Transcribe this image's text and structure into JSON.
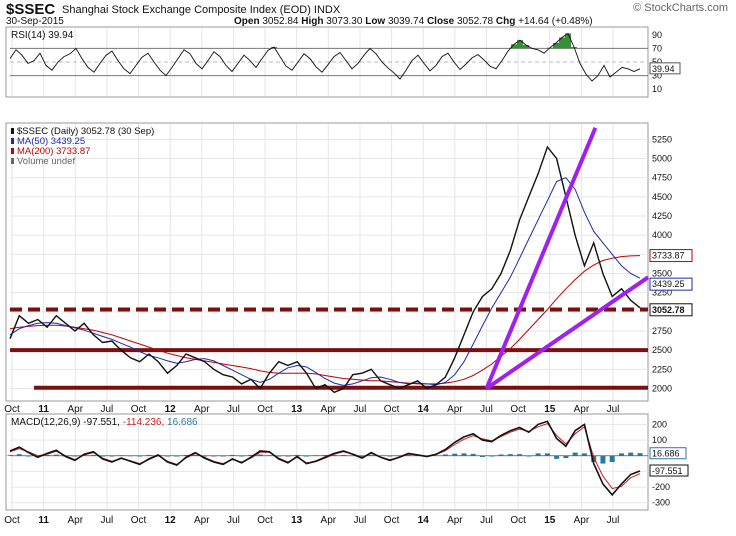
{
  "header": {
    "symbol": "$SSEC",
    "full_name": "Shanghai Stock Exchange Composite Index (EOD)",
    "exchange": "INDX",
    "date": "30-Sep-2015",
    "copyright": "© StockCharts.com",
    "ohlc": {
      "open_label": "Open",
      "open": "3052.84",
      "high_label": "High",
      "high": "3073.30",
      "low_label": "Low",
      "low": "3039.74",
      "close_label": "Close",
      "close": "3052.78",
      "chg_label": "Chg",
      "chg": "+14.64 (+0.48%)"
    }
  },
  "colors": {
    "price_line": "#111111",
    "ma50": "#1c2aa8",
    "ma200": "#c00000",
    "support_line": "#7a1010",
    "trend_line": "#a020f0",
    "rsi_overbought_fill": "#3a8f3a",
    "macd_histogram": "#2a7aa0",
    "macd_signal": "#d02020"
  },
  "chart_data": [
    {
      "type": "line",
      "panel": "rsi",
      "title": "RSI(14) 39.94",
      "ylim": [
        0,
        100
      ],
      "y_ticks": [
        10,
        30,
        50,
        70,
        90
      ],
      "reference_lines": [
        30,
        50,
        70
      ],
      "last_value_label": "39.94",
      "series": [
        {
          "values": [
            55,
            68,
            60,
            48,
            52,
            63,
            45,
            38,
            50,
            58,
            62,
            70,
            55,
            42,
            35,
            48,
            60,
            66,
            52,
            40,
            33,
            45,
            57,
            63,
            50,
            38,
            30,
            42,
            55,
            68,
            62,
            48,
            40,
            52,
            65,
            58,
            45,
            36,
            48,
            60,
            52,
            42,
            55,
            67,
            72,
            58,
            44,
            38,
            50,
            62,
            55,
            43,
            35,
            46,
            58,
            64,
            52,
            40,
            48,
            60,
            70,
            62,
            50,
            41,
            34,
            25,
            38,
            52,
            60,
            48,
            37,
            45,
            58,
            63,
            50,
            39,
            47,
            56,
            61,
            53,
            44,
            40,
            52,
            66,
            76,
            82,
            75,
            70,
            68,
            63,
            71,
            78,
            86,
            92,
            72,
            48,
            32,
            22,
            30,
            45,
            28,
            35,
            42,
            40,
            36,
            39.94
          ]
        }
      ]
    },
    {
      "type": "line",
      "panel": "price",
      "title": "$SSEC (Daily) 3052.78 (30 Sep)",
      "x_ticks": [
        "Oct",
        "11",
        "Apr",
        "Jul",
        "Oct",
        "12",
        "Apr",
        "Jul",
        "Oct",
        "13",
        "Apr",
        "Jul",
        "Oct",
        "14",
        "Apr",
        "Jul",
        "Oct",
        "15",
        "Apr",
        "Jul"
      ],
      "ylim": [
        1850,
        5450
      ],
      "y_ticks": [
        2000,
        2250,
        2500,
        2750,
        3000,
        3250,
        3500,
        3750,
        4000,
        4250,
        4500,
        4750,
        5000,
        5250
      ],
      "legend_placement": "top-left",
      "legend": [
        {
          "label": "$SSEC (Daily) 3052.78 (30 Sep)"
        },
        {
          "label": "MA(50) 3439.25"
        },
        {
          "label": "MA(200) 3733.87"
        },
        {
          "label": "Volume undef"
        }
      ],
      "last_value_labels": {
        "ma200": "3733.87",
        "ma50": "3439.25",
        "price": "3052.78"
      },
      "series": [
        {
          "name": "$SSEC",
          "values": [
            2650,
            2950,
            2850,
            2900,
            2800,
            2950,
            2850,
            2750,
            2850,
            2700,
            2600,
            2620,
            2500,
            2400,
            2350,
            2450,
            2350,
            2200,
            2300,
            2450,
            2400,
            2350,
            2250,
            2180,
            2150,
            2060,
            2120,
            2000,
            2200,
            2350,
            2300,
            2350,
            2200,
            2000,
            2050,
            1950,
            2000,
            2180,
            2200,
            2250,
            2100,
            2050,
            2000,
            2050,
            2100,
            2000,
            2050,
            2150,
            2400,
            2700,
            3000,
            3200,
            3300,
            3500,
            3800,
            4200,
            4500,
            4800,
            5150,
            5000,
            4500,
            4000,
            3600,
            3900,
            3500,
            3200,
            3300,
            3150,
            3052.78
          ]
        },
        {
          "name": "MA(50)",
          "values": [
            2700,
            2780,
            2820,
            2850,
            2860,
            2850,
            2820,
            2790,
            2760,
            2720,
            2680,
            2640,
            2590,
            2540,
            2480,
            2430,
            2400,
            2360,
            2330,
            2350,
            2380,
            2390,
            2360,
            2300,
            2240,
            2180,
            2120,
            2080,
            2120,
            2200,
            2270,
            2300,
            2280,
            2210,
            2130,
            2070,
            2040,
            2060,
            2100,
            2140,
            2150,
            2120,
            2080,
            2060,
            2070,
            2060,
            2050,
            2080,
            2180,
            2350,
            2580,
            2820,
            3050,
            3250,
            3450,
            3700,
            3950,
            4200,
            4450,
            4700,
            4750,
            4600,
            4300,
            4050,
            3900,
            3750,
            3600,
            3500,
            3439.25
          ]
        },
        {
          "name": "MA(200)",
          "values": [
            2780,
            2800,
            2810,
            2820,
            2825,
            2825,
            2815,
            2800,
            2780,
            2760,
            2730,
            2700,
            2660,
            2620,
            2580,
            2540,
            2500,
            2460,
            2430,
            2400,
            2380,
            2360,
            2340,
            2320,
            2300,
            2280,
            2260,
            2230,
            2210,
            2200,
            2200,
            2200,
            2200,
            2190,
            2170,
            2150,
            2130,
            2120,
            2110,
            2100,
            2100,
            2090,
            2080,
            2070,
            2060,
            2060,
            2060,
            2070,
            2090,
            2120,
            2170,
            2240,
            2320,
            2420,
            2520,
            2640,
            2770,
            2900,
            3030,
            3170,
            3300,
            3420,
            3530,
            3610,
            3670,
            3700,
            3720,
            3730,
            3733.87
          ]
        }
      ],
      "support_levels": [
        2500,
        2010
      ],
      "resistance_dashed": 3030,
      "annotations": [
        {
          "kind": "trend_line",
          "from_x": "Jul 14",
          "from_y": 2000,
          "to_x": "May 15",
          "to_y": 5400
        },
        {
          "kind": "trend_line",
          "from_x": "Jul 14",
          "from_y": 2000,
          "to_x": "Oct 15",
          "to_y": 3450
        }
      ]
    },
    {
      "type": "line",
      "panel": "macd",
      "title": "MACD(12,26,9) -97.551, -114.236, 16.686",
      "legend": [
        {
          "label": "MACD(12,26,9)"
        },
        {
          "label": "-97.551"
        },
        {
          "label": "-114.236"
        },
        {
          "label": "16.686"
        }
      ],
      "ylim": [
        -340,
        260
      ],
      "y_ticks": [
        -300,
        -200,
        -100,
        0,
        100,
        200
      ],
      "x_ticks": [
        "Oct",
        "11",
        "Apr",
        "Jul",
        "Oct",
        "12",
        "Apr",
        "Jul",
        "Oct",
        "13",
        "Apr",
        "Jul",
        "Oct",
        "14",
        "Apr",
        "Jul",
        "Oct",
        "15",
        "Apr",
        "Jul"
      ],
      "last_value_labels": {
        "histogram": "16.686",
        "macd": "-97.551"
      },
      "series": [
        {
          "name": "MACD",
          "values": [
            30,
            55,
            20,
            -10,
            15,
            35,
            -5,
            -30,
            10,
            25,
            -20,
            -40,
            -15,
            -35,
            -55,
            -20,
            5,
            -40,
            -60,
            -10,
            20,
            -15,
            -40,
            -55,
            -20,
            -45,
            -10,
            30,
            25,
            -20,
            -45,
            -5,
            -50,
            -35,
            -10,
            15,
            30,
            10,
            -15,
            20,
            -10,
            -30,
            -10,
            15,
            5,
            -5,
            10,
            40,
            85,
            120,
            140,
            100,
            90,
            130,
            160,
            180,
            150,
            200,
            220,
            110,
            60,
            160,
            200,
            -50,
            -180,
            -250,
            -180,
            -120,
            -97.551
          ]
        },
        {
          "name": "Signal",
          "values": [
            25,
            45,
            25,
            0,
            10,
            28,
            0,
            -25,
            5,
            20,
            -15,
            -35,
            -18,
            -32,
            -50,
            -25,
            0,
            -35,
            -55,
            -15,
            15,
            -10,
            -35,
            -50,
            -25,
            -40,
            -15,
            22,
            22,
            -15,
            -40,
            -10,
            -45,
            -38,
            -15,
            10,
            25,
            12,
            -10,
            15,
            -8,
            -25,
            -12,
            10,
            5,
            -3,
            8,
            32,
            72,
            105,
            128,
            108,
            95,
            122,
            150,
            170,
            155,
            185,
            205,
            130,
            75,
            140,
            185,
            -10,
            -130,
            -210,
            -195,
            -140,
            -114.236
          ]
        },
        {
          "name": "Histogram",
          "values": [
            5,
            10,
            -5,
            -10,
            5,
            7,
            -5,
            -5,
            5,
            5,
            -5,
            -5,
            3,
            -3,
            -5,
            5,
            5,
            -5,
            -5,
            5,
            5,
            -5,
            -5,
            -5,
            5,
            -5,
            5,
            8,
            3,
            -5,
            -5,
            5,
            -5,
            3,
            5,
            5,
            5,
            -2,
            -5,
            5,
            -2,
            -5,
            2,
            5,
            0,
            -2,
            2,
            8,
            13,
            15,
            12,
            -8,
            -5,
            8,
            10,
            10,
            -5,
            15,
            15,
            -20,
            -15,
            20,
            15,
            -40,
            -50,
            -40,
            15,
            20,
            16.686
          ]
        }
      ]
    }
  ]
}
